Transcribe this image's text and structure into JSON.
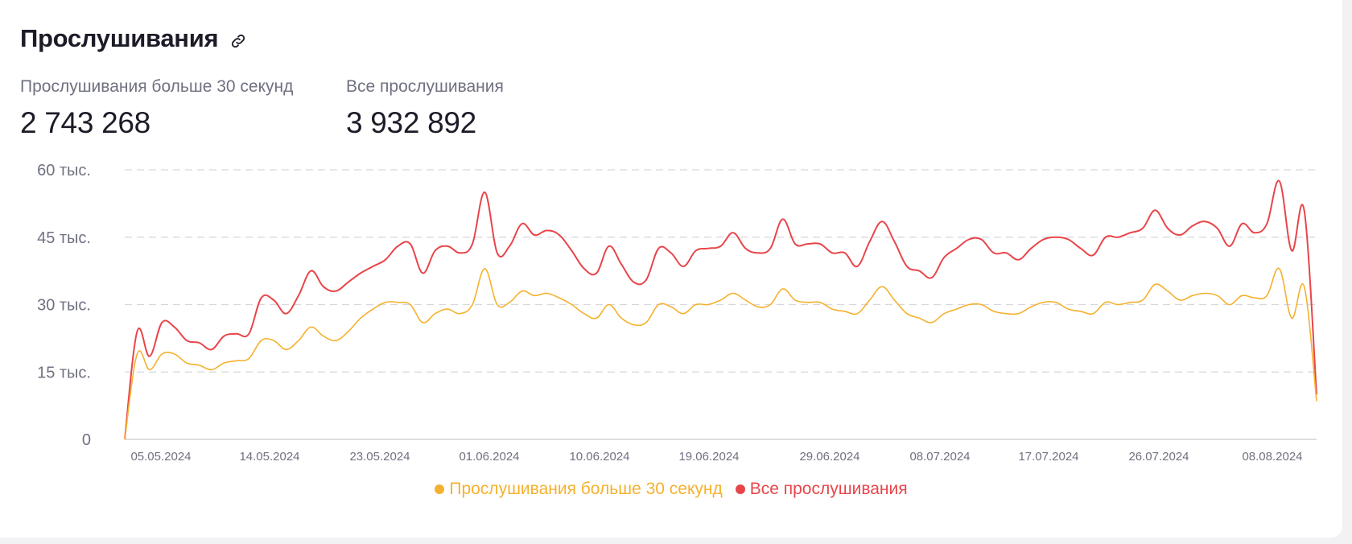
{
  "header": {
    "title": "Прослушивания",
    "icon": "link-icon"
  },
  "stats": [
    {
      "label": "Прослушивания больше 30 секунд",
      "value": "2 743 268"
    },
    {
      "label": "Все прослушивания",
      "value": "3 932 892"
    }
  ],
  "colors": {
    "over30": "#f5b12e",
    "all": "#e8454a",
    "grid": "#d6d6dc",
    "axis": "#c9c9cf"
  },
  "chart_data": {
    "type": "line",
    "title": "",
    "xlabel": "",
    "ylabel": "",
    "ylim": [
      0,
      60000
    ],
    "y_ticks": [
      {
        "value": 0,
        "label": "0"
      },
      {
        "value": 15000,
        "label": "15 тыс."
      },
      {
        "value": 30000,
        "label": "30 тыс."
      },
      {
        "value": 45000,
        "label": "45 тыс."
      },
      {
        "value": 60000,
        "label": "60 тыс."
      }
    ],
    "x_tick_labels": [
      "05.05.2024",
      "14.05.2024",
      "23.05.2024",
      "01.06.2024",
      "10.06.2024",
      "19.06.2024",
      "29.06.2024",
      "08.07.2024",
      "17.07.2024",
      "26.07.2024",
      "08.08.2024"
    ],
    "grid": true,
    "legend_position": "bottom-center",
    "series": [
      {
        "name": "Прослушивания больше 30 секунд",
        "values": [
          0,
          19000,
          15500,
          19000,
          19000,
          17000,
          16500,
          15500,
          17000,
          17500,
          18000,
          22000,
          22000,
          20000,
          22000,
          25000,
          23000,
          22000,
          24000,
          27000,
          29000,
          30500,
          30500,
          30000,
          26000,
          28000,
          29000,
          28000,
          30000,
          38000,
          30000,
          30500,
          33000,
          32000,
          32500,
          31500,
          30000,
          28000,
          27000,
          30000,
          27000,
          25500,
          26000,
          30000,
          29500,
          28000,
          30000,
          30000,
          31000,
          32500,
          31000,
          29500,
          30000,
          33500,
          31000,
          30500,
          30500,
          29000,
          28500,
          28000,
          31000,
          34000,
          31000,
          28000,
          27000,
          26000,
          28000,
          29000,
          30000,
          30000,
          28500,
          28000,
          28000,
          29500,
          30500,
          30500,
          29000,
          28500,
          28000,
          30500,
          30000,
          30500,
          31000,
          34500,
          33000,
          31000,
          32000,
          32500,
          32000,
          30000,
          32000,
          31500,
          32000,
          38000,
          27000,
          34000,
          8500
        ]
      },
      {
        "name": "Все прослушивания",
        "values": [
          0,
          24000,
          18500,
          26000,
          25000,
          22000,
          21500,
          20000,
          23000,
          23500,
          23500,
          31500,
          31000,
          28000,
          32000,
          37500,
          34000,
          33000,
          35000,
          37000,
          38500,
          40000,
          43000,
          43500,
          37000,
          42000,
          43000,
          41500,
          43500,
          55000,
          41500,
          43000,
          48000,
          45500,
          46500,
          45500,
          42000,
          38000,
          37000,
          43000,
          39000,
          35000,
          35500,
          42500,
          41500,
          38500,
          42000,
          42500,
          43000,
          46000,
          42500,
          41500,
          42500,
          49000,
          43500,
          43500,
          43500,
          41500,
          41500,
          38500,
          44000,
          48500,
          44000,
          38500,
          37500,
          36000,
          40500,
          42500,
          44500,
          44500,
          41500,
          41500,
          40000,
          42500,
          44500,
          45000,
          44500,
          42500,
          41000,
          45000,
          45000,
          46000,
          47000,
          51000,
          47000,
          45500,
          47500,
          48500,
          47000,
          43000,
          48000,
          46000,
          48000,
          57500,
          42000,
          51000,
          10000
        ]
      }
    ]
  }
}
